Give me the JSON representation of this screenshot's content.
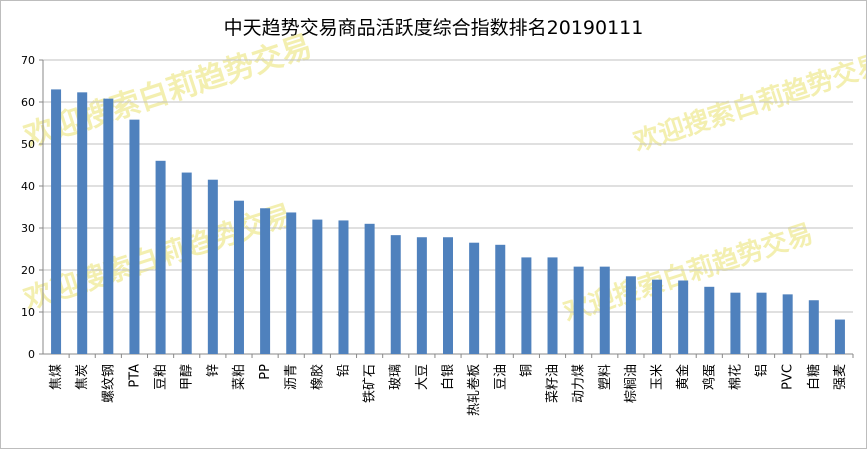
{
  "chart_data": {
    "type": "bar",
    "title": "中天趋势交易商品活跃度综合指数排名20190111",
    "watermark": "欢迎搜索白莉趋势交易",
    "categories": [
      "焦煤",
      "焦炭",
      "螺纹钢",
      "PTA",
      "豆粕",
      "甲醇",
      "锌",
      "菜粕",
      "PP",
      "沥青",
      "橡胶",
      "铅",
      "铁矿石",
      "玻璃",
      "大豆",
      "白银",
      "热轧卷板",
      "豆油",
      "铜",
      "菜籽油",
      "动力煤",
      "塑料",
      "棕榈油",
      "玉米",
      "黄金",
      "鸡蛋",
      "棉花",
      "铝",
      "PVC",
      "白糖",
      "强麦"
    ],
    "values": [
      63,
      62.3,
      60.8,
      55.8,
      46,
      43.2,
      41.5,
      36.5,
      34.7,
      33.7,
      32,
      31.8,
      31,
      28.3,
      27.8,
      27.8,
      26.5,
      26,
      23,
      23,
      20.8,
      20.8,
      18.5,
      17.7,
      17.5,
      16,
      14.6,
      14.6,
      14.2,
      12.8,
      8.2
    ],
    "ylim": [
      0,
      70
    ],
    "yticks": [
      0,
      10,
      20,
      30,
      40,
      50,
      60,
      70
    ],
    "grid": true,
    "legend": "none",
    "colors": {
      "bar": "#4f81bd",
      "grid": "#c0c0c0",
      "axis": "#888888",
      "watermark": "#f3efb0"
    }
  }
}
